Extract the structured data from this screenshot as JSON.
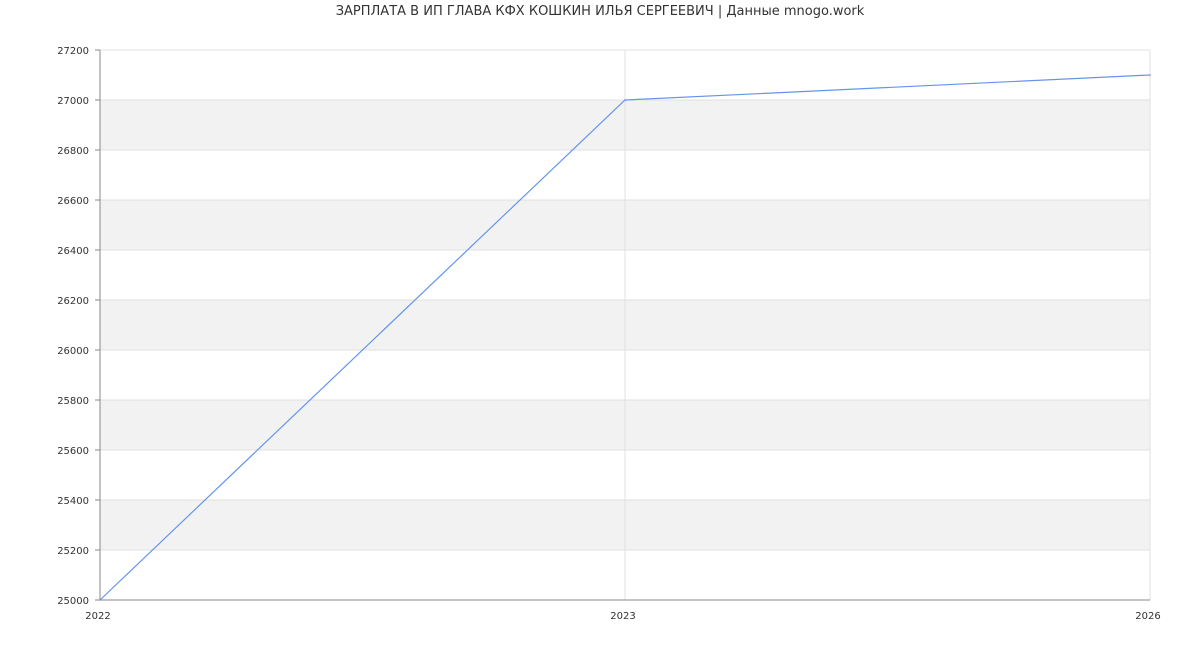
{
  "chart_data": {
    "type": "line",
    "title": "ЗАРПЛАТА В ИП ГЛАВА КФХ КОШКИН ИЛЬЯ СЕРГЕЕВИЧ | Данные mnogo.work",
    "categories": [
      "2022",
      "2023",
      "2026"
    ],
    "series": [
      {
        "values": [
          25000,
          27000,
          27100
        ],
        "color": "#6495ed"
      }
    ],
    "ylim": [
      25000,
      27200
    ],
    "yticks": [
      25000,
      25200,
      25400,
      25600,
      25800,
      26000,
      26200,
      26400,
      26600,
      26800,
      27000,
      27200
    ],
    "xlabel": "",
    "ylabel": "",
    "grid": true,
    "band_color": "#f2f2f2"
  }
}
